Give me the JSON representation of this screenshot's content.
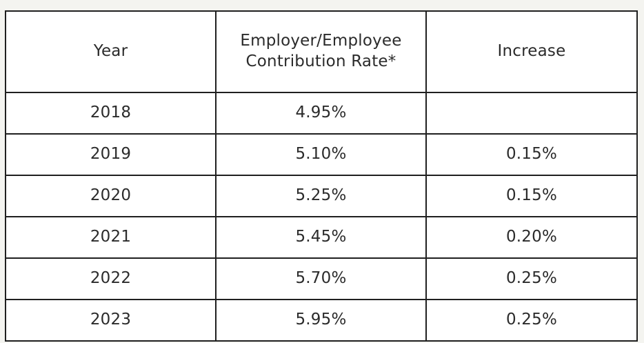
{
  "table": {
    "headers": {
      "year": "Year",
      "rate_line1": "Employer/Employee",
      "rate_line2": "Contribution Rate*",
      "increase": "Increase"
    },
    "rows": [
      {
        "year": "2018",
        "rate": "4.95%",
        "increase": ""
      },
      {
        "year": "2019",
        "rate": "5.10%",
        "increase": "0.15%"
      },
      {
        "year": "2020",
        "rate": "5.25%",
        "increase": "0.15%"
      },
      {
        "year": "2021",
        "rate": "5.45%",
        "increase": "0.20%"
      },
      {
        "year": "2022",
        "rate": "5.70%",
        "increase": "0.25%"
      },
      {
        "year": "2023",
        "rate": "5.95%",
        "increase": "0.25%"
      }
    ]
  }
}
